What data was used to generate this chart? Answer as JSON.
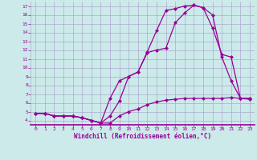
{
  "background_color": "#cceaea",
  "grid_color": "#aaaacc",
  "line_color": "#990099",
  "xlabel": "Windchill (Refroidissement éolien,°C)",
  "tick_color": "#990099",
  "xlim": [
    -0.5,
    23.5
  ],
  "ylim": [
    3.5,
    17.5
  ],
  "xticks": [
    0,
    1,
    2,
    3,
    4,
    5,
    6,
    7,
    8,
    9,
    10,
    11,
    12,
    13,
    14,
    15,
    16,
    17,
    18,
    19,
    20,
    21,
    22,
    23
  ],
  "yticks": [
    4,
    5,
    6,
    7,
    8,
    9,
    10,
    11,
    12,
    13,
    14,
    15,
    16,
    17
  ],
  "line1_x": [
    0,
    1,
    2,
    3,
    4,
    5,
    6,
    7,
    8,
    9,
    10,
    11,
    12,
    13,
    14,
    15,
    16,
    17,
    18,
    19,
    20,
    21,
    22,
    23
  ],
  "line1_y": [
    4.8,
    4.8,
    4.5,
    4.5,
    4.5,
    4.3,
    4.0,
    3.7,
    3.7,
    4.5,
    5.0,
    5.3,
    5.8,
    6.1,
    6.3,
    6.4,
    6.5,
    6.5,
    6.5,
    6.5,
    6.5,
    6.6,
    6.5,
    6.4
  ],
  "line2_x": [
    0,
    1,
    2,
    3,
    4,
    5,
    6,
    7,
    8,
    9,
    10,
    11,
    12,
    13,
    14,
    15,
    16,
    17,
    18,
    19,
    20,
    21,
    22,
    23
  ],
  "line2_y": [
    4.8,
    4.8,
    4.5,
    4.5,
    4.5,
    4.3,
    4.0,
    3.7,
    4.5,
    6.2,
    9.0,
    9.5,
    11.8,
    14.2,
    16.5,
    16.7,
    17.0,
    17.1,
    16.8,
    16.0,
    11.2,
    8.5,
    6.5,
    6.5
  ],
  "line3_x": [
    0,
    1,
    2,
    3,
    4,
    5,
    6,
    7,
    8,
    9,
    10,
    11,
    12,
    13,
    14,
    15,
    16,
    17,
    18,
    19,
    20,
    21,
    22,
    23
  ],
  "line3_y": [
    4.8,
    4.8,
    4.5,
    4.5,
    4.5,
    4.3,
    4.0,
    3.7,
    6.5,
    8.5,
    9.0,
    9.5,
    11.7,
    12.0,
    12.2,
    15.1,
    16.2,
    17.1,
    16.8,
    14.5,
    11.5,
    11.2,
    6.5,
    6.5
  ]
}
